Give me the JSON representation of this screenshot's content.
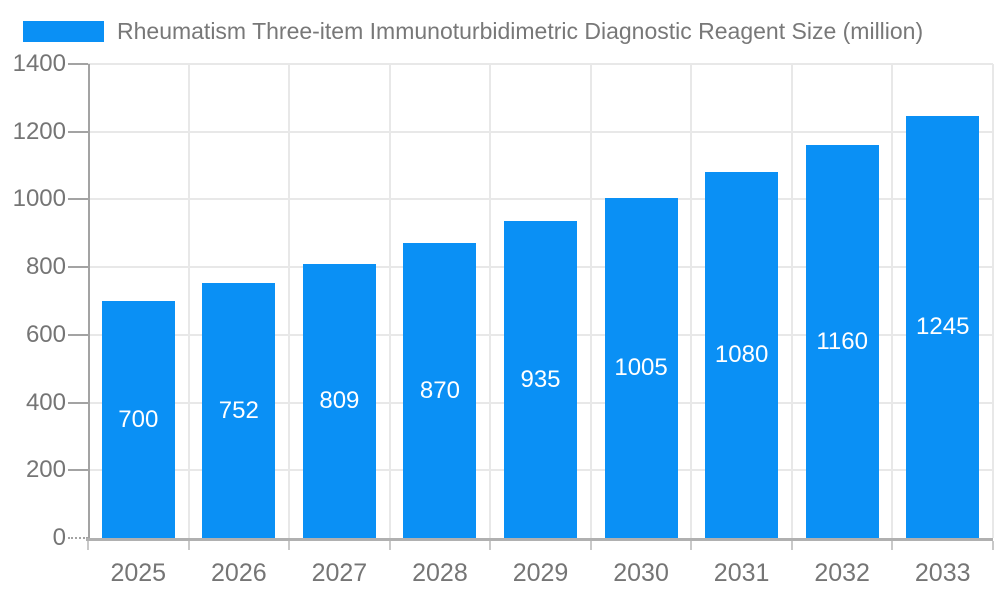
{
  "colors": {
    "bar": "#0a90f5",
    "bar_label": "#ffffff",
    "axis_line": "#a3a3a3",
    "baseline": "#b0b0b0",
    "gridline": "#e8e8e8",
    "y_tick": "#a3a3a3",
    "x_tick": "#c9c9c9",
    "axis_label": "#757575",
    "title_text": "#787878",
    "background": "#ffffff"
  },
  "chart_data": {
    "type": "bar",
    "title": "Rheumatism Three-item Immunoturbidimetric Diagnostic Reagent Size (million)",
    "categories": [
      "2025",
      "2026",
      "2027",
      "2028",
      "2029",
      "2030",
      "2031",
      "2032",
      "2033"
    ],
    "values": [
      700,
      752,
      809,
      870,
      935,
      1005,
      1080,
      1160,
      1245
    ],
    "series": [
      {
        "name": "Rheumatism Three-item Immunoturbidimetric Diagnostic Reagent Size (million)",
        "values": [
          700,
          752,
          809,
          870,
          935,
          1005,
          1080,
          1160,
          1245
        ]
      }
    ],
    "data_labels_shown": true,
    "xlabel": "",
    "ylabel": "",
    "ylim": [
      0,
      1400
    ],
    "yticks": [
      0,
      200,
      400,
      600,
      800,
      1000,
      1200,
      1400
    ],
    "grid": true,
    "legend_position": "top-left"
  }
}
